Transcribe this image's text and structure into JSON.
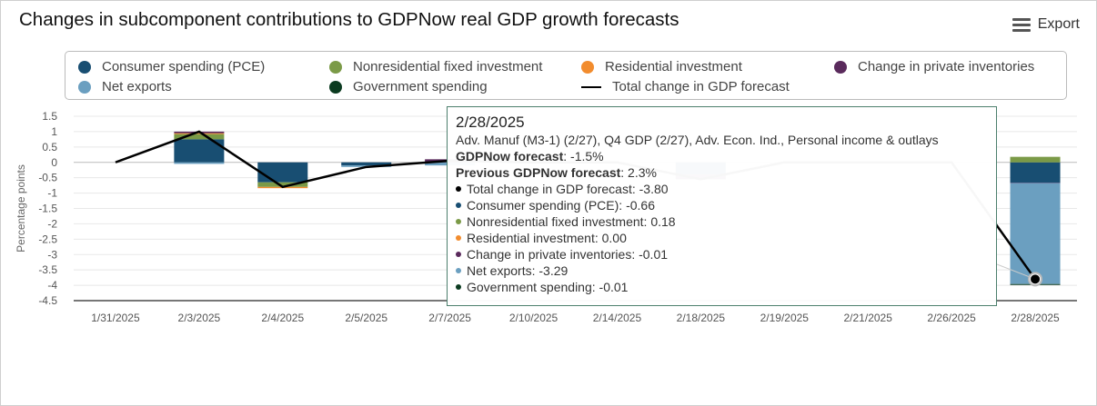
{
  "header": {
    "title": "Changes in subcomponent contributions to GDPNow real GDP growth forecasts",
    "export_label": "Export",
    "export_icon": "hamburger-menu-icon"
  },
  "colors": {
    "pce": "#184e72",
    "nonres": "#7b9a47",
    "res": "#f28c2e",
    "inv": "#5a2a5c",
    "nx": "#6b9fc0",
    "gov": "#0b3b20",
    "total": "#000000"
  },
  "legend": [
    {
      "key": "pce",
      "label": "Consumer spending (PCE)"
    },
    {
      "key": "nonres",
      "label": "Nonresidential fixed investment"
    },
    {
      "key": "res",
      "label": "Residential investment"
    },
    {
      "key": "inv",
      "label": "Change in private inventories"
    },
    {
      "key": "nx",
      "label": "Net exports"
    },
    {
      "key": "gov",
      "label": "Government spending"
    },
    {
      "key": "total",
      "label": "Total change in GDP forecast"
    }
  ],
  "chart_data": {
    "type": "bar",
    "stacked": true,
    "ylabel": "Percentage points",
    "ylim": [
      -4.5,
      1.5
    ],
    "yticks": [
      "1.5",
      "1",
      "0.5",
      "0",
      "-0.5",
      "-1",
      "-1.5",
      "-2",
      "-2.5",
      "-3",
      "-3.5",
      "-4",
      "-4.5"
    ],
    "grid": true,
    "legend_position": "top",
    "categories": [
      "1/31/2025",
      "2/3/2025",
      "2/4/2025",
      "2/5/2025",
      "2/7/2025",
      "2/10/2025",
      "2/14/2025",
      "2/18/2025",
      "2/19/2025",
      "2/21/2025",
      "2/26/2025",
      "2/28/2025"
    ],
    "series": [
      {
        "name": "Consumer spending (PCE)",
        "key": "pce",
        "values": [
          0,
          0.75,
          -0.65,
          -0.1,
          0,
          -0.02,
          0,
          -0.4,
          0,
          0,
          0,
          -0.66
        ]
      },
      {
        "name": "Nonresidential fixed investment",
        "key": "nonres",
        "values": [
          0,
          0.17,
          -0.15,
          0,
          0,
          0,
          0,
          0,
          0,
          0,
          0,
          0.18
        ]
      },
      {
        "name": "Residential investment",
        "key": "res",
        "values": [
          0,
          0.03,
          -0.04,
          0,
          0,
          0,
          0,
          0,
          0,
          0,
          0,
          0.0
        ]
      },
      {
        "name": "Change in private inventories",
        "key": "inv",
        "values": [
          0,
          0.05,
          0,
          0,
          0.1,
          0,
          0,
          -0.15,
          0,
          0,
          0,
          -0.01
        ]
      },
      {
        "name": "Net exports",
        "key": "nx",
        "values": [
          0,
          -0.05,
          0,
          -0.05,
          -0.1,
          0,
          0,
          0,
          0,
          0,
          0,
          -3.29
        ]
      },
      {
        "name": "Government spending",
        "key": "gov",
        "values": [
          0,
          0,
          0,
          0,
          0,
          0,
          0,
          0,
          0,
          0,
          0,
          -0.01
        ]
      },
      {
        "name": "Total change in GDP forecast",
        "key": "total",
        "type": "line",
        "values": [
          0,
          1.0,
          -0.8,
          -0.15,
          0.05,
          0,
          0,
          -0.55,
          0,
          0,
          0,
          -3.8
        ]
      }
    ]
  },
  "tooltip": {
    "date": "2/28/2025",
    "releases": "Adv. Manuf (M3-1) (2/27), Q4 GDP (2/27), Adv. Econ. Ind., Personal income & outlays",
    "forecast_label": "GDPNow forecast",
    "forecast_value": ": -1.5%",
    "previous_label": "Previous GDPNow forecast",
    "previous_value": ": 2.3%",
    "items": [
      {
        "key": "total",
        "text": "Total change in GDP forecast: -3.80"
      },
      {
        "key": "pce",
        "text": "Consumer spending (PCE): -0.66"
      },
      {
        "key": "nonres",
        "text": "Nonresidential fixed investment: 0.18"
      },
      {
        "key": "res",
        "text": "Residential investment: 0.00"
      },
      {
        "key": "inv",
        "text": "Change in private inventories: -0.01"
      },
      {
        "key": "nx",
        "text": "Net exports: -3.29"
      },
      {
        "key": "gov",
        "text": "Government spending: -0.01"
      }
    ]
  }
}
